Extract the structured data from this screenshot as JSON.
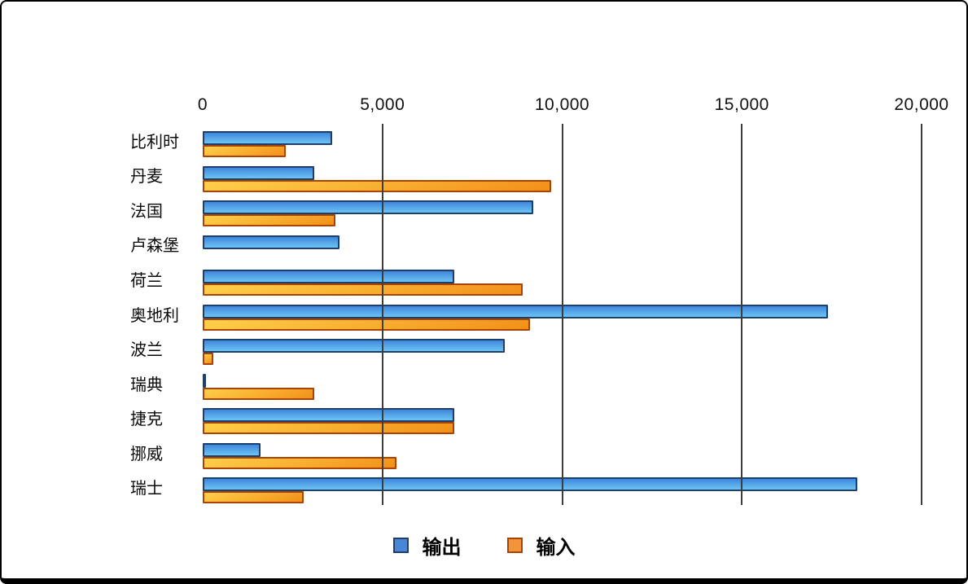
{
  "chart_data": {
    "type": "bar",
    "orientation": "horizontal",
    "title": "",
    "xlabel": "",
    "ylabel": "",
    "categories": [
      "比利时",
      "丹麦",
      "法国",
      "卢森堡",
      "荷兰",
      "奥地利",
      "波兰",
      "瑞典",
      "捷克",
      "挪威",
      "瑞士"
    ],
    "series": [
      {
        "name": "输出",
        "color": "#4a86d8",
        "values": [
          3600,
          3100,
          9200,
          3800,
          7000,
          17400,
          8400,
          100,
          7000,
          1600,
          18200
        ]
      },
      {
        "name": "输入",
        "color": "#f29018",
        "values": [
          2300,
          9700,
          3700,
          0,
          8900,
          9100,
          300,
          3100,
          7000,
          5400,
          2800
        ]
      }
    ],
    "x_axis": {
      "min": 0,
      "max": 20000,
      "tick_values": [
        0,
        5000,
        10000,
        15000,
        20000
      ],
      "tick_labels": [
        "0",
        "5,000",
        "10,000",
        "15,000",
        "20,000"
      ]
    },
    "grid": true,
    "legend_position": "bottom"
  },
  "colors": {
    "output_fill_top": "#3f86dc",
    "output_fill_bottom": "#6cc4f2",
    "output_border": "#1c3f6e",
    "input_fill_top": "#ffd04a",
    "input_fill_bottom": "#f29018",
    "input_border": "#a84300",
    "legend_output_fill": "#4a86d8",
    "legend_input_fill": "#f2953a",
    "gridline": "#3c3c3c",
    "axis_text": "#111111",
    "frame_border": "#000000",
    "background": "#ffffff"
  }
}
